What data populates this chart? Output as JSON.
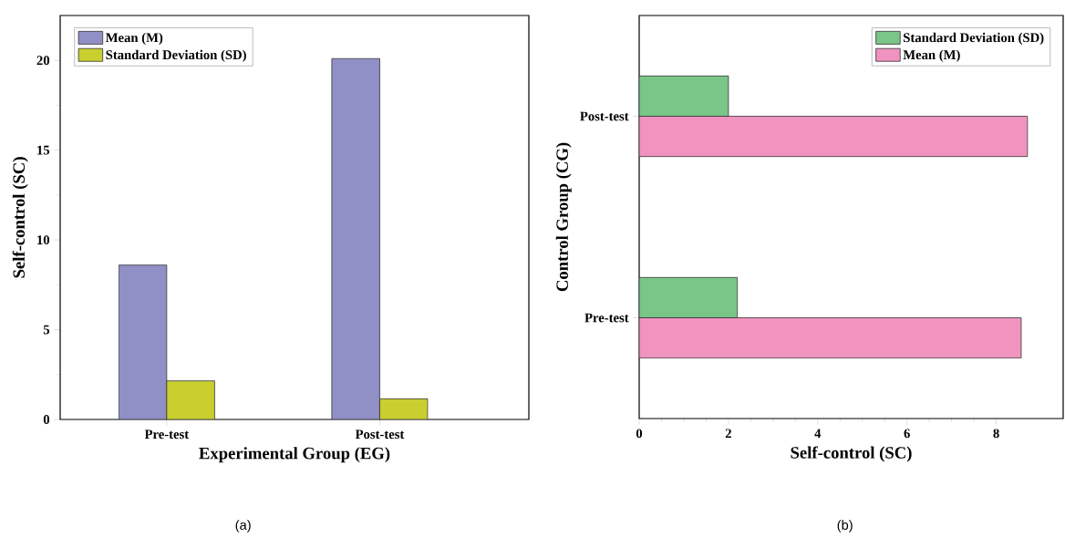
{
  "chart_data": [
    {
      "type": "bar",
      "categories": [
        "Pre-test",
        "Post-test"
      ],
      "xlabel": "Experimental Group (EG)",
      "ylabel": "Self-control (SC)",
      "ylim": [
        0,
        22.5
      ],
      "yticks": [
        0,
        5,
        10,
        15,
        20
      ],
      "legend": "top left",
      "annotations": [
        "(a)"
      ],
      "series": [
        {
          "name": "Mean (M)",
          "color": "#9090c6",
          "values": [
            8.6,
            20.1
          ]
        },
        {
          "name": "Standard Deviation (SD)",
          "color": "#c8cf2f",
          "values": [
            2.15,
            1.15
          ]
        }
      ]
    },
    {
      "type": "bar",
      "orientation": "horizontal",
      "categories": [
        "Post-test",
        "Pre-test"
      ],
      "xlabel": "Self-control (SC)",
      "ylabel": "Control Group (CG)",
      "xlim": [
        0,
        9.5
      ],
      "xticks": [
        0,
        2,
        4,
        6,
        8
      ],
      "legend": "top right",
      "annotations": [
        "(b)"
      ],
      "series": [
        {
          "name": "Standard Deviation (SD)",
          "color": "#79c688",
          "values": [
            2.0,
            2.2
          ]
        },
        {
          "name": "Mean (M)",
          "color": "#f093bf",
          "values": [
            8.7,
            8.56
          ]
        }
      ]
    }
  ]
}
